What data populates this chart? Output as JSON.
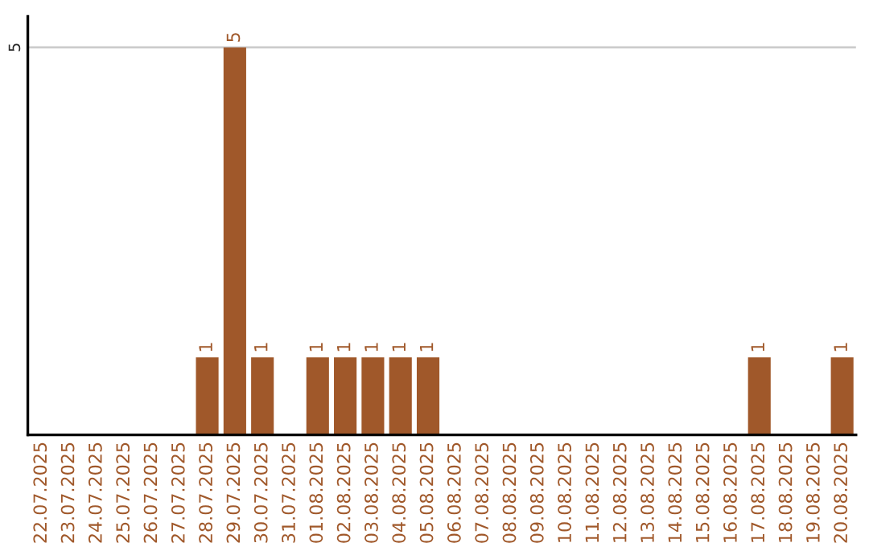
{
  "chart_data": {
    "type": "bar",
    "categories": [
      "22.07.2025",
      "23.07.2025",
      "24.07.2025",
      "25.07.2025",
      "26.07.2025",
      "27.07.2025",
      "28.07.2025",
      "29.07.2025",
      "30.07.2025",
      "31.07.2025",
      "01.08.2025",
      "02.08.2025",
      "03.08.2025",
      "04.08.2025",
      "05.08.2025",
      "06.08.2025",
      "07.08.2025",
      "08.08.2025",
      "09.08.2025",
      "10.08.2025",
      "11.08.2025",
      "12.08.2025",
      "13.08.2025",
      "14.08.2025",
      "15.08.2025",
      "16.08.2025",
      "17.08.2025",
      "18.08.2025",
      "19.08.2025",
      "20.08.2025"
    ],
    "values": [
      0,
      0,
      0,
      0,
      0,
      0,
      1,
      5,
      1,
      0,
      1,
      1,
      1,
      1,
      1,
      0,
      0,
      0,
      0,
      0,
      0,
      0,
      0,
      0,
      0,
      0,
      1,
      0,
      0,
      1
    ],
    "value_labels": [
      null,
      null,
      null,
      null,
      null,
      null,
      "1",
      "5",
      "1",
      null,
      "1",
      "1",
      "1",
      "1",
      "1",
      null,
      null,
      null,
      null,
      null,
      null,
      null,
      null,
      null,
      null,
      null,
      "1",
      null,
      null,
      "1"
    ],
    "color": "#a0582a",
    "ylim": [
      0,
      5.4
    ],
    "yticks": [
      5
    ],
    "grid": "y"
  }
}
